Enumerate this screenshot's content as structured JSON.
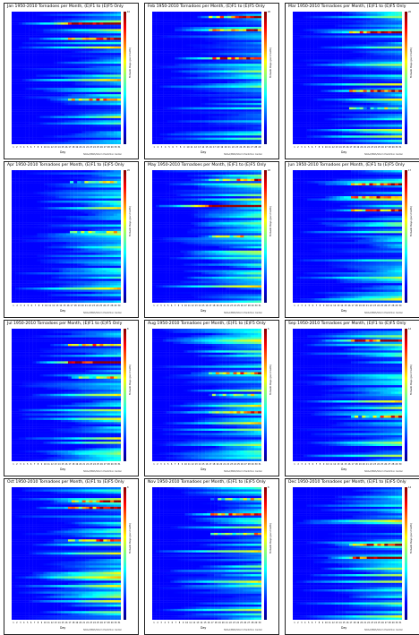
{
  "chart_data": [
    {
      "type": "heatmap",
      "title": "Jan 1950-2010 Tornadoes per Month, (E)F1 to (E)F5 Only",
      "xlabel": "Day",
      "cbar_label": "Tornado Days (per month)",
      "credit": "NOAA/NWS/Storm Prediction Center",
      "max": 10,
      "seed": 11,
      "hot_rows": [
        5,
        12,
        40
      ],
      "y_tick_labels": [
        "2010",
        "2000",
        "1990",
        "1980",
        "1970",
        "1960",
        "1950"
      ],
      "x": [
        1,
        2,
        3,
        4,
        5,
        6,
        7,
        8,
        9,
        10,
        11,
        12,
        13,
        14,
        15,
        16,
        17,
        18,
        19,
        20,
        21,
        22,
        23,
        24,
        25,
        26,
        27,
        28,
        29,
        30,
        31
      ]
    },
    {
      "type": "heatmap",
      "title": "Feb 1950-2010 Tornadoes per Month, (E)F1 to (E)F5 Only",
      "xlabel": "Day",
      "cbar_label": "Tornado Days (per month)",
      "credit": "NOAA/NWS/Storm Prediction Center",
      "max": 20,
      "seed": 23,
      "hot_rows": [
        2,
        8,
        21
      ],
      "y_tick_labels": [
        "2010",
        "2000",
        "1990",
        "1980",
        "1970",
        "1960",
        "1950"
      ],
      "x": [
        1,
        2,
        3,
        4,
        5,
        6,
        7,
        8,
        9,
        10,
        11,
        12,
        13,
        14,
        15,
        16,
        17,
        18,
        19,
        20,
        21,
        22,
        23,
        24,
        25,
        26,
        27,
        28,
        29
      ]
    },
    {
      "type": "heatmap",
      "title": "Mar 1950-2010 Tornadoes per Month, (E)F1 to (E)F5 Only",
      "xlabel": "Day",
      "cbar_label": "Tornado Days (per month)",
      "credit": "NOAA/NWS/Storm Prediction Center",
      "max": 20,
      "seed": 37,
      "hot_rows": [
        9,
        36,
        44
      ],
      "y_tick_labels": [
        "2010",
        "2000",
        "1990",
        "1980",
        "1970",
        "1960",
        "1950"
      ],
      "x": [
        1,
        2,
        3,
        4,
        5,
        6,
        7,
        8,
        9,
        10,
        11,
        12,
        13,
        14,
        15,
        16,
        17,
        18,
        19,
        20,
        21,
        22,
        23,
        24,
        25,
        26,
        27,
        28,
        29,
        30,
        31
      ]
    },
    {
      "type": "heatmap",
      "title": "Apr 1950-2010 Tornadoes per Month, (E)F1 to (E)F5 Only",
      "xlabel": "Day",
      "cbar_label": "Tornado Days (per month)",
      "credit": "NOAA/NWS/Storm Prediction Center",
      "max": 20,
      "seed": 41,
      "hot_rows": [
        28,
        5
      ],
      "y_tick_labels": [
        "2010",
        "2000",
        "1990",
        "1980",
        "1970",
        "1960",
        "1950"
      ],
      "x": [
        1,
        2,
        3,
        4,
        5,
        6,
        7,
        8,
        9,
        10,
        11,
        12,
        13,
        14,
        15,
        16,
        17,
        18,
        19,
        20,
        21,
        22,
        23,
        24,
        25,
        26,
        27,
        28,
        29,
        30
      ]
    },
    {
      "type": "heatmap",
      "title": "May 1950-2010 Tornadoes per Month, (E)F1 to (E)F5 Only",
      "xlabel": "Day",
      "cbar_label": "Tornado Days (per month)",
      "credit": "NOAA/NWS/Storm Prediction Center",
      "max": 20,
      "seed": 53,
      "hot_rows": [
        4,
        16,
        30
      ],
      "y_tick_labels": [
        "2010",
        "2000",
        "1990",
        "1980",
        "1970",
        "1960",
        "1950"
      ],
      "x": [
        1,
        2,
        3,
        4,
        5,
        6,
        7,
        8,
        9,
        10,
        11,
        12,
        13,
        14,
        15,
        16,
        17,
        18,
        19,
        20,
        21,
        22,
        23,
        24,
        25,
        26,
        27,
        28,
        29,
        30,
        31
      ]
    },
    {
      "type": "heatmap",
      "title": "Jun 1950-2010 Tornadoes per Month, (E)F1 to (E)F5 Only",
      "xlabel": "Day",
      "cbar_label": "Tornado Days (per month)",
      "credit": "NOAA/NWS/Storm Prediction Center",
      "max": 17,
      "seed": 67,
      "hot_rows": [
        12,
        18,
        6
      ],
      "y_tick_labels": [
        "2010",
        "2000",
        "1990",
        "1980",
        "1970",
        "1960",
        "1950"
      ],
      "x": [
        1,
        2,
        3,
        4,
        5,
        6,
        7,
        8,
        9,
        10,
        11,
        12,
        13,
        14,
        15,
        16,
        17,
        18,
        19,
        20,
        21,
        22,
        23,
        24,
        25,
        26,
        27,
        28,
        29,
        30
      ]
    },
    {
      "type": "heatmap",
      "title": "Jul 1950-2010 Tornadoes per Month, (E)F1 to (E)F5 Only",
      "xlabel": "Day",
      "cbar_label": "Tornado Days (per month)",
      "credit": "NOAA/NWS/Storm Prediction Center",
      "max": 8,
      "seed": 71,
      "hot_rows": [
        7,
        15,
        22
      ],
      "y_tick_labels": [
        "2010",
        "2000",
        "1990",
        "1980",
        "1970",
        "1960",
        "1950"
      ],
      "x": [
        1,
        2,
        3,
        4,
        5,
        6,
        7,
        8,
        9,
        10,
        11,
        12,
        13,
        14,
        15,
        16,
        17,
        18,
        19,
        20,
        21,
        22,
        23,
        24,
        25,
        26,
        27,
        28,
        29,
        30,
        31
      ]
    },
    {
      "type": "heatmap",
      "title": "Aug 1950-2010 Tornadoes per Month, (E)F1 to (E)F5 Only",
      "xlabel": "Day",
      "cbar_label": "Tornado Days (per month)",
      "credit": "NOAA/NWS/Storm Prediction Center",
      "max": 6,
      "seed": 83,
      "hot_rows": [
        20,
        30,
        38
      ],
      "y_tick_labels": [
        "2010",
        "2000",
        "1990",
        "1980",
        "1970",
        "1960",
        "1950"
      ],
      "x": [
        1,
        2,
        3,
        4,
        5,
        6,
        7,
        8,
        9,
        10,
        11,
        12,
        13,
        14,
        15,
        16,
        17,
        18,
        19,
        20,
        21,
        22,
        23,
        24,
        25,
        26,
        27,
        28,
        29,
        30,
        31
      ]
    },
    {
      "type": "heatmap",
      "title": "Sep 1950-2010 Tornadoes per Month, (E)F1 to (E)F5 Only",
      "xlabel": "Day",
      "cbar_label": "Tornado Days (per month)",
      "credit": "NOAA/NWS/Storm Prediction Center",
      "max": 12,
      "seed": 97,
      "hot_rows": [
        5,
        40
      ],
      "y_tick_labels": [
        "2010",
        "2000",
        "1990",
        "1980",
        "1970",
        "1960",
        "1950"
      ],
      "x": [
        1,
        2,
        3,
        4,
        5,
        6,
        7,
        8,
        9,
        10,
        11,
        12,
        13,
        14,
        15,
        16,
        17,
        18,
        19,
        20,
        21,
        22,
        23,
        24,
        25,
        26,
        27,
        28,
        29,
        30
      ]
    },
    {
      "type": "heatmap",
      "title": "Oct 1950-2010 Tornadoes per Month, (E)F1 to (E)F5 Only",
      "xlabel": "Day",
      "cbar_label": "Tornado Days (per month)",
      "credit": "NOAA/NWS/Storm Prediction Center",
      "max": 8,
      "seed": 101,
      "hot_rows": [
        6,
        9,
        24
      ],
      "y_tick_labels": [
        "2010",
        "2000",
        "1990",
        "1980",
        "1970",
        "1960",
        "1950"
      ],
      "x": [
        1,
        2,
        3,
        4,
        5,
        6,
        7,
        8,
        9,
        10,
        11,
        12,
        13,
        14,
        15,
        16,
        17,
        18,
        19,
        20,
        21,
        22,
        23,
        24,
        25,
        26,
        27,
        28,
        29,
        30,
        31
      ]
    },
    {
      "type": "heatmap",
      "title": "Nov 1950-2010 Tornadoes per Month, (E)F1 to (E)F5 Only",
      "xlabel": "Day",
      "cbar_label": "Tornado Days (per month)",
      "credit": "NOAA/NWS/Storm Prediction Center",
      "max": 8,
      "seed": 113,
      "hot_rows": [
        5,
        21,
        12
      ],
      "y_tick_labels": [
        "2010",
        "2000",
        "1990",
        "1980",
        "1970",
        "1960",
        "1950"
      ],
      "x": [
        1,
        2,
        3,
        4,
        5,
        6,
        7,
        8,
        9,
        10,
        11,
        12,
        13,
        14,
        15,
        16,
        17,
        18,
        19,
        20,
        21,
        22,
        23,
        24,
        25,
        26,
        27,
        28,
        29,
        30
      ]
    },
    {
      "type": "heatmap",
      "title": "Dec 1950-2010 Tornadoes per Month, (E)F1 to (E)F5 Only",
      "xlabel": "Day",
      "cbar_label": "Tornado Days (per month)",
      "credit": "NOAA/NWS/Storm Prediction Center",
      "max": 14,
      "seed": 127,
      "hot_rows": [
        26,
        32
      ],
      "y_tick_labels": [
        "2010",
        "2000",
        "1990",
        "1980",
        "1970",
        "1960",
        "1950"
      ],
      "x": [
        1,
        2,
        3,
        4,
        5,
        6,
        7,
        8,
        9,
        10,
        11,
        12,
        13,
        14,
        15,
        16,
        17,
        18,
        19,
        20,
        21,
        22,
        23,
        24,
        25,
        26,
        27,
        28,
        29,
        30,
        31
      ]
    }
  ]
}
